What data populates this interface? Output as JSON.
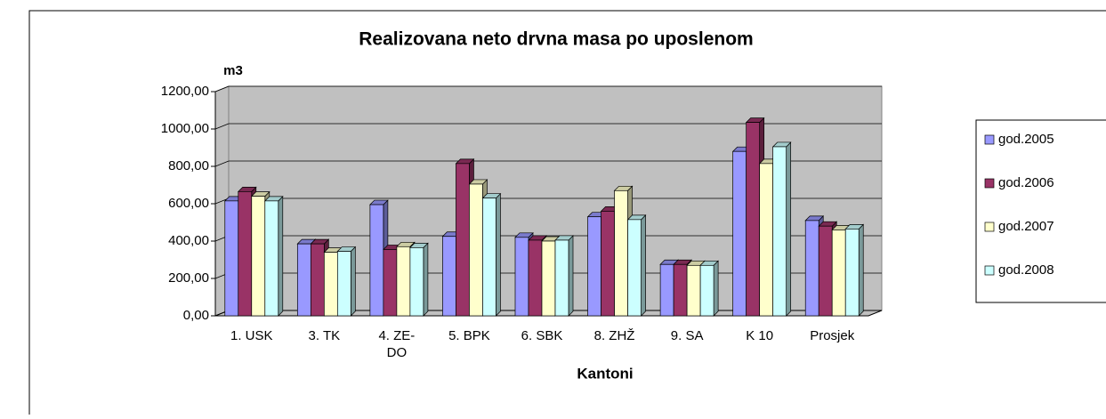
{
  "chart_data": {
    "type": "bar3d",
    "title": "Realizovana neto drvna masa po uposlenom",
    "y_label": "m3",
    "x_label": "Kantoni",
    "categories": [
      "1. USK",
      "3. TK",
      "4. ZE-DO",
      "5. BPK",
      "6. SBK",
      "8. ZHŽ",
      "9. SA",
      "K 10",
      "Prosjek"
    ],
    "series": [
      {
        "name": "god.2005",
        "color": "#9999ff",
        "values": [
          615,
          385,
          595,
          425,
          420,
          530,
          275,
          880,
          510
        ]
      },
      {
        "name": "god.2006",
        "color": "#993366",
        "values": [
          665,
          385,
          355,
          815,
          405,
          560,
          275,
          1035,
          480
        ]
      },
      {
        "name": "god.2007",
        "color": "#ffffcc",
        "values": [
          640,
          340,
          370,
          705,
          400,
          670,
          270,
          815,
          460
        ]
      },
      {
        "name": "god.2008",
        "color": "#ccffff",
        "values": [
          615,
          345,
          365,
          630,
          405,
          515,
          270,
          905,
          465
        ]
      }
    ],
    "ylim": [
      0,
      1200
    ],
    "yticks": [
      {
        "value": 0,
        "label": "0,00"
      },
      {
        "value": 200,
        "label": "200,00"
      },
      {
        "value": 400,
        "label": "400,00"
      },
      {
        "value": 600,
        "label": "600,00"
      },
      {
        "value": 800,
        "label": "800,00"
      },
      {
        "value": 1000,
        "label": "1000,00"
      },
      {
        "value": 1200,
        "label": "1200,00"
      }
    ],
    "grid": true,
    "legend": "right"
  }
}
